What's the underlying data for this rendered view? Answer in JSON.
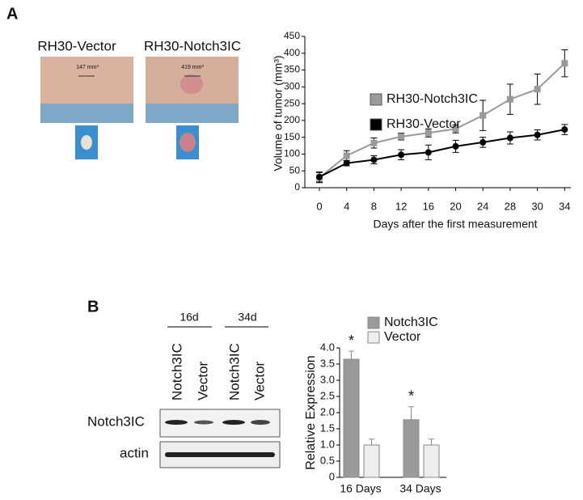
{
  "panel_a": {
    "label": "A",
    "photos": [
      {
        "caption": "RH30-Vector",
        "volume": "147 mm³"
      },
      {
        "caption": "RH30-Notch3IC",
        "volume": "419 mm³"
      }
    ]
  },
  "panel_b": {
    "label": "B",
    "blot": {
      "time_points": [
        "16d",
        "34d"
      ],
      "lanes": [
        "Notch3IC",
        "Vector",
        "Notch3IC",
        "Vector"
      ],
      "rows": [
        "Notch3IC",
        "actin"
      ]
    }
  },
  "chart_data": [
    {
      "type": "line",
      "x_label": "Days after the first measurement",
      "y_label": "Volume of tumor (mm³)",
      "categories": [
        "0",
        "4",
        "8",
        "12",
        "16",
        "20",
        "24",
        "28",
        "30",
        "34"
      ],
      "series": [
        {
          "name": "RH30-Notch3IC",
          "color": "#9a9a9a",
          "marker": "square",
          "values": [
            30,
            95,
            133,
            152,
            163,
            175,
            215,
            263,
            293,
            370
          ],
          "errors": [
            15,
            15,
            15,
            10,
            12,
            12,
            45,
            45,
            45,
            40
          ]
        },
        {
          "name": "RH30-Vector",
          "color": "#000000",
          "marker": "circle",
          "values": [
            32,
            73,
            83,
            98,
            105,
            123,
            135,
            148,
            157,
            173
          ],
          "errors": [
            15,
            8,
            12,
            15,
            22,
            18,
            15,
            18,
            15,
            15
          ]
        }
      ],
      "ylim": [
        0,
        450
      ],
      "yticks": [
        0,
        50,
        100,
        150,
        200,
        250,
        300,
        350,
        400,
        450
      ]
    },
    {
      "type": "bar",
      "y_label": "Relative Expression",
      "categories": [
        "16 Days",
        "34 Days"
      ],
      "series": [
        {
          "name": "Notch3IC",
          "color": "#9a9a9a",
          "values": [
            3.65,
            1.78
          ],
          "errors": [
            0.25,
            0.4
          ]
        },
        {
          "name": "Vector",
          "color": "#eeeeee",
          "values": [
            1.0,
            1.0
          ],
          "errors": [
            0.18,
            0.18
          ]
        }
      ],
      "annotations": [
        "*",
        "*"
      ],
      "ylim": [
        0,
        4
      ],
      "yticks": [
        0,
        0.5,
        {
          "value": 1,
          "label": "1.0"
        },
        1.5,
        {
          "value": 2,
          "label": "2.0"
        },
        2.5,
        {
          "value": 3,
          "label": "3.0"
        },
        3.5,
        {
          "value": 4,
          "label": "4.0"
        }
      ]
    }
  ]
}
